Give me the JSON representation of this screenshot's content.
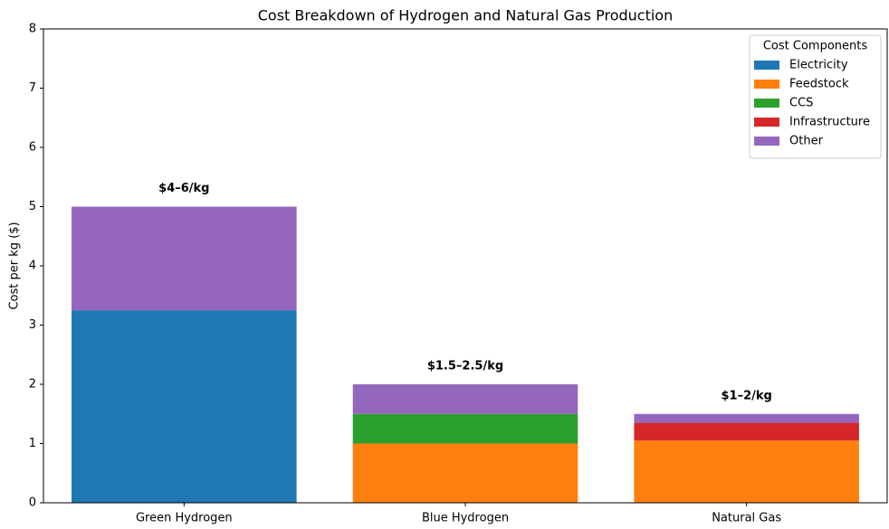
{
  "chart_data": {
    "type": "stacked-bar",
    "title": "Cost Breakdown of Hydrogen and Natural Gas Production",
    "y_label": "Cost per kg ($)",
    "categories": [
      "Green Hydrogen",
      "Blue Hydrogen",
      "Natural Gas"
    ],
    "series": [
      {
        "name": "Electricity",
        "color": "#1f77b4",
        "values": [
          3.25,
          0,
          0
        ]
      },
      {
        "name": "Feedstock",
        "color": "#ff7f0e",
        "values": [
          0,
          1.0,
          1.05
        ]
      },
      {
        "name": "CCS",
        "color": "#2ca02c",
        "values": [
          0,
          0.5,
          0
        ]
      },
      {
        "name": "Infrastructure",
        "color": "#d62728",
        "values": [
          0,
          0,
          0.3
        ]
      },
      {
        "name": "Other",
        "color": "#9467bd",
        "values": [
          1.75,
          0.5,
          0.15
        ]
      }
    ],
    "annotations": [
      "$4–6/kg",
      "$1.5–2.5/kg",
      "$1–2/kg"
    ],
    "ylim": [
      0,
      8
    ],
    "yticks": [
      0,
      1,
      2,
      3,
      4,
      5,
      6,
      7,
      8
    ],
    "legend_title": "Cost Components",
    "legend_position": "upper right"
  }
}
